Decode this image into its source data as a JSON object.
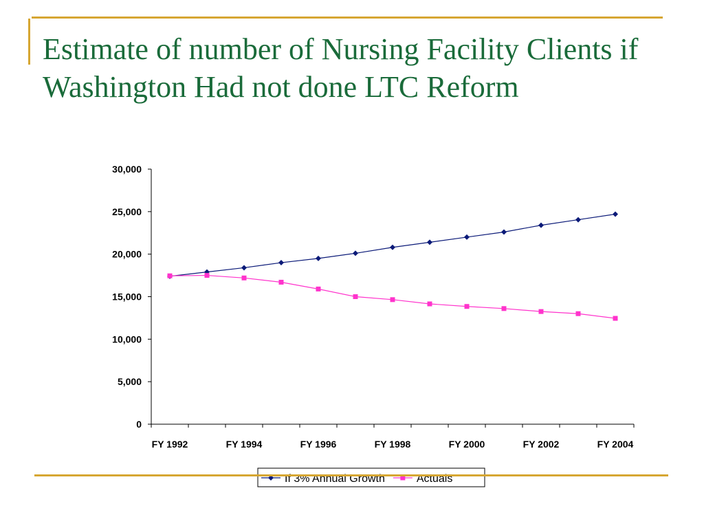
{
  "slide": {
    "title": "Estimate of number of Nursing Facility Clients if Washington Had not done LTC Reform"
  },
  "colors": {
    "accent": "#d6a632",
    "title": "#1a6b3a",
    "series_growth": "#0b1a78",
    "series_actuals": "#ff33cc"
  },
  "chart_data": {
    "type": "line",
    "title": "",
    "xlabel": "",
    "ylabel": "",
    "ylim": [
      0,
      30000
    ],
    "y_ticks": [
      0,
      5000,
      10000,
      15000,
      20000,
      25000,
      30000
    ],
    "y_tick_labels": [
      "0",
      "5,000",
      "10,000",
      "15,000",
      "20,000",
      "25,000",
      "30,000"
    ],
    "x_tick_labels": [
      "FY 1992",
      "FY 1994",
      "FY 1996",
      "FY 1998",
      "FY 2000",
      "FY 2002",
      "FY 2004"
    ],
    "x": [
      "FY 1992",
      "FY 1993",
      "FY 1994",
      "FY 1995",
      "FY 1996",
      "FY 1997",
      "FY 1998",
      "FY 1999",
      "FY 2000",
      "FY 2001",
      "FY 2002",
      "FY 2003",
      "FY 2004"
    ],
    "series": [
      {
        "name": "If 3% Annual Growth",
        "color": "#0b1a78",
        "marker": "diamond",
        "values": [
          17400,
          17900,
          18400,
          19000,
          19500,
          20100,
          20800,
          21400,
          22000,
          22600,
          23400,
          24050,
          24700
        ]
      },
      {
        "name": "Actuals",
        "color": "#ff33cc",
        "marker": "square",
        "values": [
          17450,
          17500,
          17200,
          16700,
          15900,
          15000,
          14650,
          14150,
          13850,
          13600,
          13250,
          13000,
          12450
        ]
      }
    ],
    "grid": false,
    "legend": "bottom"
  }
}
